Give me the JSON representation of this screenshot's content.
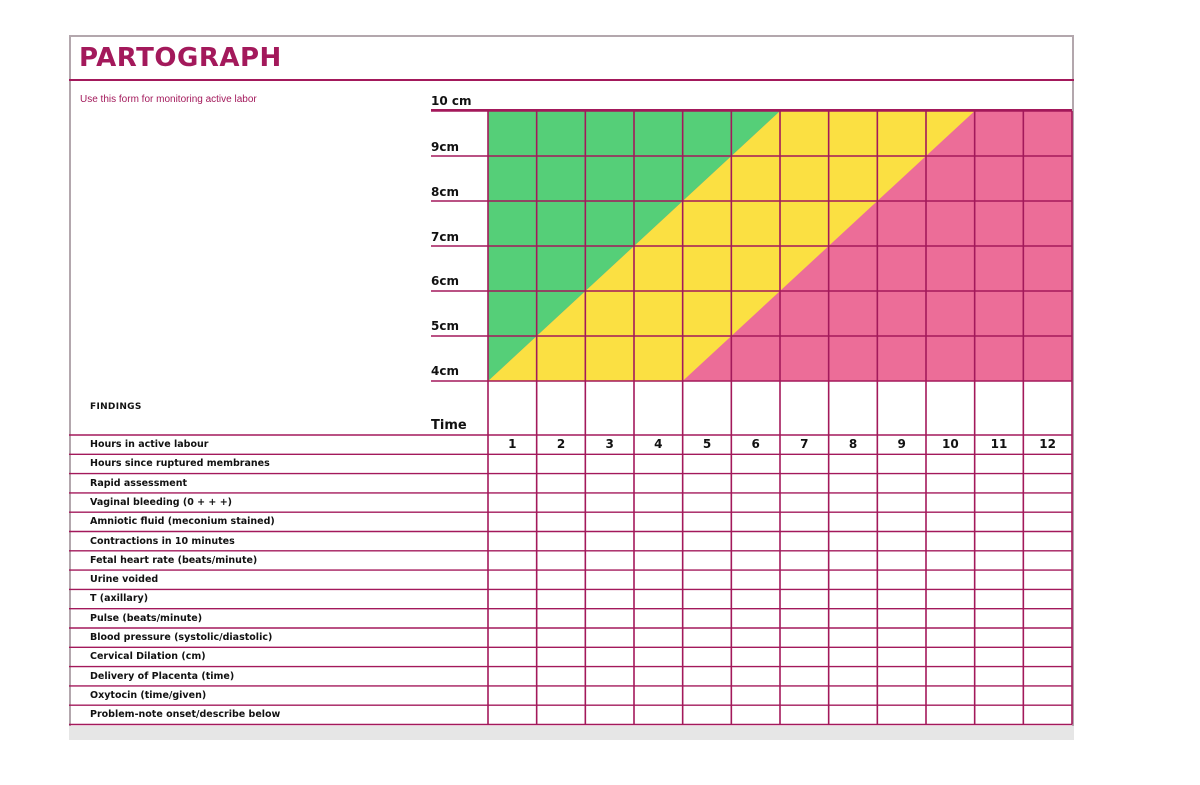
{
  "title": "PARTOGRAPH",
  "subtitle": "Use this form for monitoring active labor",
  "dilation_labels": [
    "10 cm",
    "9cm",
    "8cm",
    "7cm",
    "6cm",
    "5cm",
    "4cm"
  ],
  "findings_label": "FINDINGS",
  "time_label": "Time",
  "hours": [
    "1",
    "2",
    "3",
    "4",
    "5",
    "6",
    "7",
    "8",
    "9",
    "10",
    "11",
    "12"
  ],
  "rows": [
    "Hours in active labour",
    "Hours since ruptured membranes",
    "Rapid assessment",
    "Vaginal bleeding (0 + + +)",
    "Amniotic fluid (meconium stained)",
    "Contractions in 10 minutes",
    "Fetal heart rate (beats/minute)",
    "Urine voided",
    "T (axillary)",
    "Pulse (beats/minute)",
    "Blood pressure (systolic/diastolic)",
    "Cervical Dilation (cm)",
    "Delivery of Placenta (time)",
    "Oxytocin (time/given)",
    "Problem-note onset/describe below"
  ],
  "zone_colors": {
    "green": "#55cf78",
    "yellow": "#fbe042",
    "pink": "#ec6d98",
    "line": "#a3195b"
  },
  "chart_data": {
    "type": "table",
    "x_hours": [
      0,
      12
    ],
    "y_dilation_cm": [
      4,
      10
    ],
    "alert_line": [
      [
        0,
        4
      ],
      [
        6,
        10
      ]
    ],
    "action_line": [
      [
        4,
        4
      ],
      [
        10,
        10
      ]
    ]
  }
}
